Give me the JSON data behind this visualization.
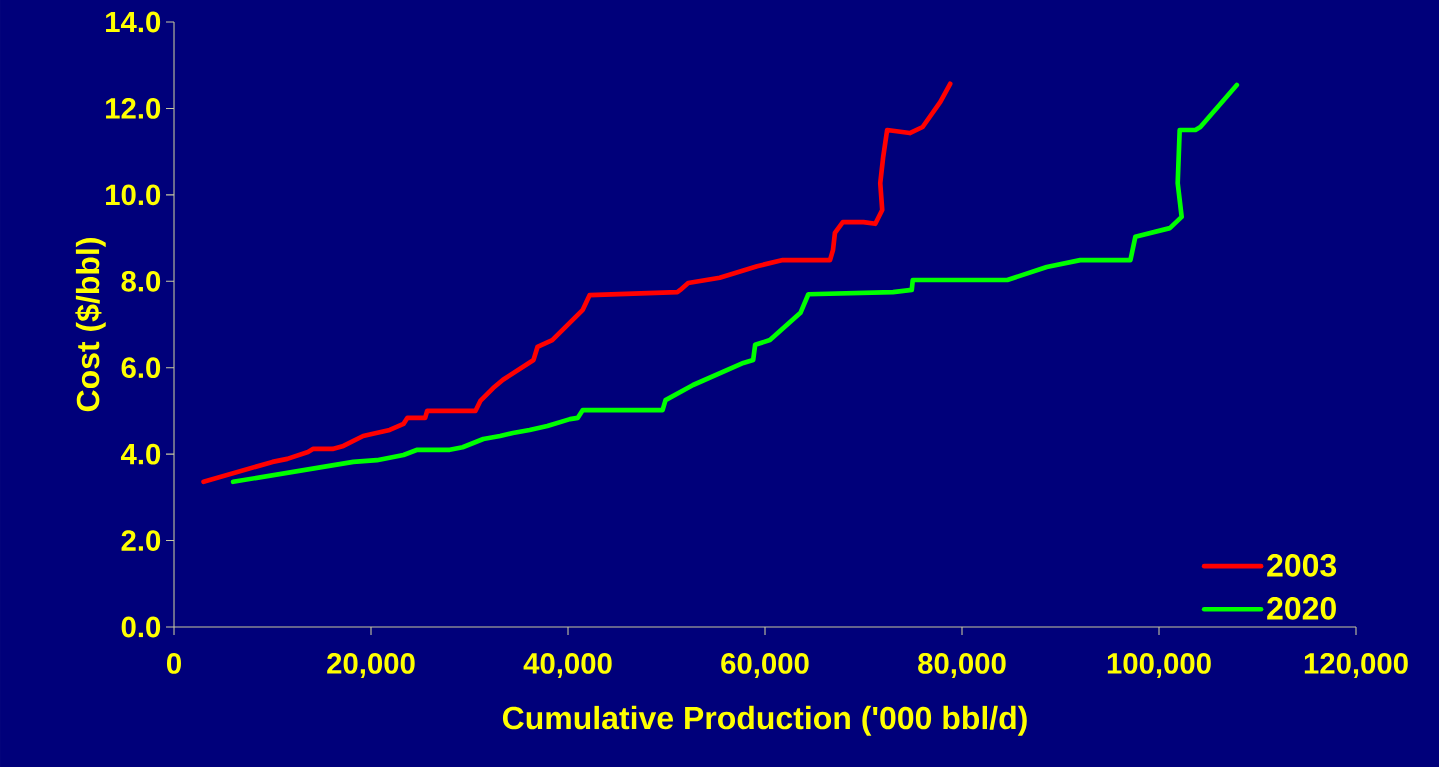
{
  "chart_data": {
    "type": "line",
    "xlabel": "Cumulative Production ('000 bbl/d)",
    "ylabel": "Cost ($/bbl)",
    "xlim": [
      0,
      120000
    ],
    "ylim": [
      0,
      14
    ],
    "xticks": [
      0,
      {
        "value": 20000,
        "label": "20,000"
      },
      {
        "value": 40000,
        "label": "40,000"
      },
      {
        "value": 60000,
        "label": "60,000"
      },
      {
        "value": 80000,
        "label": "80,000"
      },
      {
        "value": 100000,
        "label": "100,000"
      },
      {
        "value": 120000,
        "label": "120,000"
      }
    ],
    "yticks": [
      {
        "value": 0,
        "label": "0.0"
      },
      {
        "value": 2,
        "label": "2.0"
      },
      {
        "value": 4,
        "label": "4.0"
      },
      {
        "value": 6,
        "label": "6.0"
      },
      {
        "value": 8,
        "label": "8.0"
      },
      {
        "value": 10,
        "label": "10.0"
      },
      {
        "value": 12,
        "label": "12.0"
      },
      {
        "value": 14,
        "label": "14.0"
      }
    ],
    "grid": false,
    "legend": "bottom right",
    "line_style": "solid",
    "series": [
      {
        "name": "2003",
        "color": "#ff0000",
        "x": [
          3000,
          10000,
          11500,
          13600,
          14100,
          16100,
          17200,
          19200,
          20200,
          21900,
          23300,
          23700,
          25500,
          25700,
          30600,
          31100,
          32400,
          33400,
          36500,
          36900,
          38400,
          41500,
          42200,
          51100,
          51400,
          52200,
          55400,
          59200,
          61800,
          66600,
          66900,
          67100,
          67900,
          70000,
          71200,
          71900,
          71700,
          72000,
          72400,
          74700,
          76000,
          77800,
          78800
        ],
        "values": [
          3.36,
          3.82,
          3.89,
          4.05,
          4.12,
          4.12,
          4.19,
          4.42,
          4.47,
          4.56,
          4.7,
          4.84,
          4.84,
          5.0,
          5.0,
          5.23,
          5.53,
          5.72,
          6.18,
          6.48,
          6.64,
          7.34,
          7.68,
          7.75,
          7.8,
          7.96,
          8.08,
          8.35,
          8.49,
          8.49,
          8.72,
          9.12,
          9.37,
          9.37,
          9.33,
          9.65,
          10.27,
          10.88,
          11.5,
          11.43,
          11.57,
          12.15,
          12.57
        ]
      },
      {
        "name": "2020",
        "color": "#00ff00",
        "x": [
          6000,
          18200,
          20600,
          23300,
          24700,
          28000,
          29300,
          31400,
          33100,
          34400,
          36100,
          37900,
          40200,
          41000,
          41500,
          49600,
          49900,
          52700,
          57800,
          58800,
          59000,
          60500,
          63600,
          64400,
          73000,
          74900,
          75000,
          84600,
          88600,
          92000,
          97100,
          97600,
          101100,
          102300,
          101900,
          102100,
          103700,
          104200,
          107900
        ],
        "values": [
          3.36,
          3.82,
          3.86,
          3.98,
          4.1,
          4.1,
          4.16,
          4.35,
          4.42,
          4.49,
          4.56,
          4.65,
          4.81,
          4.84,
          5.02,
          5.02,
          5.25,
          5.6,
          6.11,
          6.18,
          6.53,
          6.64,
          7.27,
          7.7,
          7.75,
          7.8,
          8.03,
          8.03,
          8.33,
          8.49,
          8.49,
          9.03,
          9.23,
          9.49,
          10.27,
          11.5,
          11.5,
          11.57,
          12.54
        ]
      }
    ]
  }
}
